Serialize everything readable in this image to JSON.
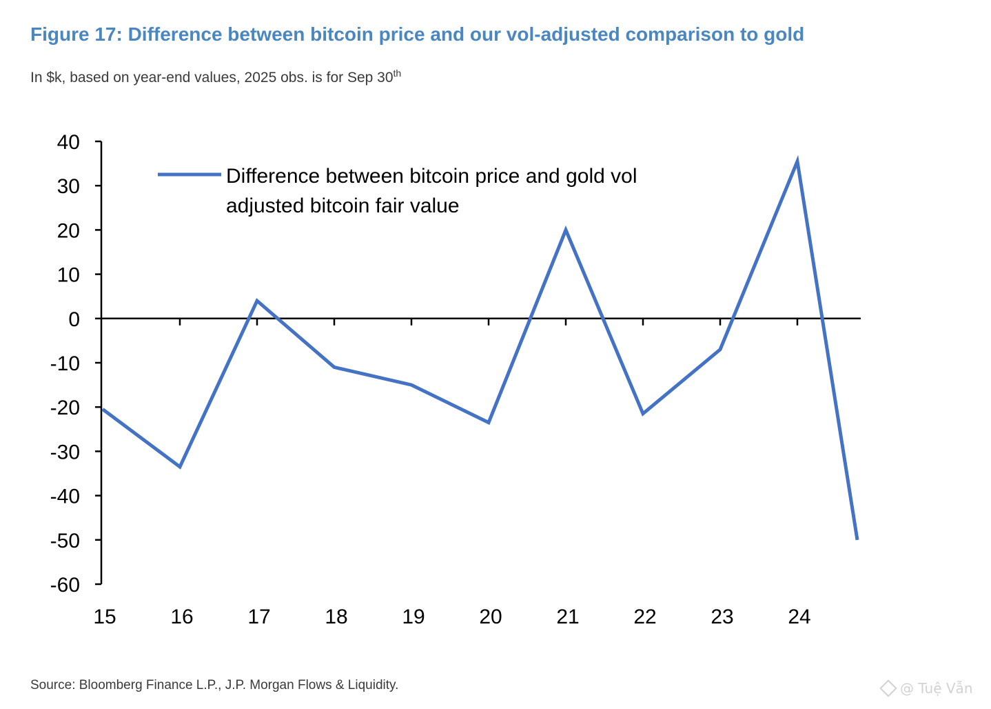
{
  "figure": {
    "title": "Figure 17: Difference between bitcoin price and our vol-adjusted comparison to gold",
    "subtitle": "In $k, based on year-end values, 2025 obs. is for Sep 30",
    "subtitle_sup": "th",
    "source": "Source: Bloomberg Finance L.P., J.P. Morgan Flows & Liquidity.",
    "watermark": "@ Tuệ Vẫn"
  },
  "colors": {
    "title": "#4a86c0",
    "line": "#4472c4",
    "axis": "#000000",
    "text": "#3a3a3a"
  },
  "chart_data": {
    "type": "line",
    "title": "",
    "xlabel": "",
    "ylabel": "",
    "x_tick_labels": [
      "15",
      "16",
      "17",
      "18",
      "19",
      "20",
      "21",
      "22",
      "23",
      "24"
    ],
    "y_ticks": [
      40,
      30,
      20,
      10,
      0,
      -10,
      -20,
      -30,
      -40,
      -50,
      -60
    ],
    "ylim": [
      -60,
      40
    ],
    "grid": false,
    "legend_position": "top-left",
    "series": [
      {
        "name": "Difference between bitcoin price and gold vol adjusted bitcoin fair value",
        "legend_lines": [
          "Difference between bitcoin price and gold vol",
          "adjusted bitcoin fair value"
        ],
        "x": [
          "15",
          "16",
          "17",
          "18",
          "19",
          "20",
          "21",
          "22",
          "23",
          "24",
          "Sep 30 2025"
        ],
        "values": [
          -20.5,
          -33.5,
          4,
          -11,
          -15,
          -23.5,
          20,
          -21.5,
          -7,
          35.5,
          -50
        ]
      }
    ]
  }
}
